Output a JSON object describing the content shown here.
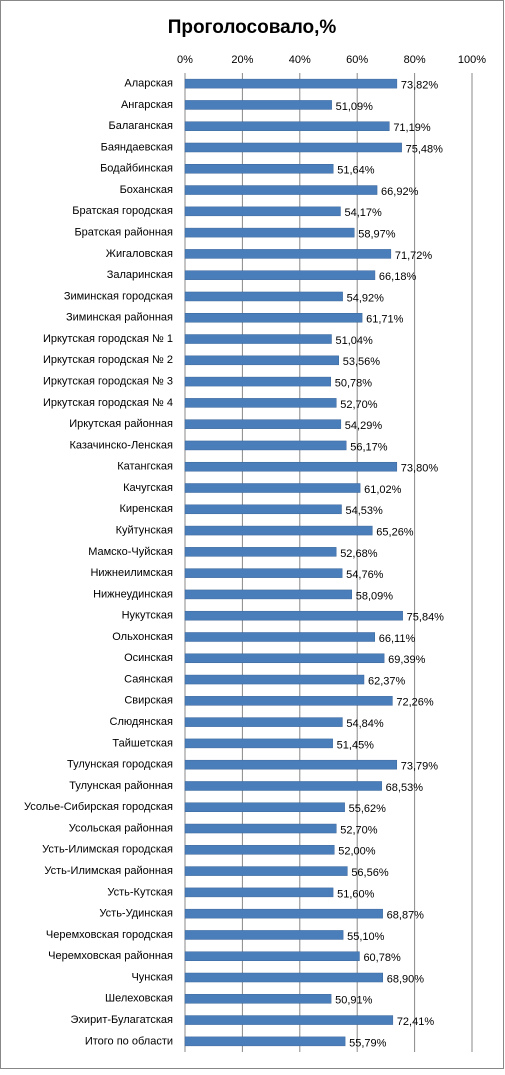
{
  "chart_data": {
    "type": "bar",
    "title": "Проголосовало,%",
    "categories": [
      "Аларская",
      "Ангарская",
      "Балаганская",
      "Баяндаевская",
      "Бодайбинская",
      "Боханская",
      "Братская городская",
      "Братская районная",
      "Жигаловская",
      "Заларинская",
      "Зиминская городская",
      "Зиминская районная",
      "Иркутская городская № 1",
      "Иркутская городская № 2",
      "Иркутская городская № 3",
      "Иркутская городская № 4",
      "Иркутская районная",
      "Казачинско-Ленская",
      "Катангская",
      "Качугская",
      "Киренская",
      "Куйтунская",
      "Мамско-Чуйская",
      "Нижнеилимская",
      "Нижнеудинская",
      "Нукутская",
      "Ольхонская",
      "Осинская",
      "Саянская",
      "Свирская",
      "Слюдянская",
      "Тайшетская",
      "Тулунская городская",
      "Тулунская районная",
      "Усолье-Сибирская городская",
      "Усольская районная",
      "Усть-Илимская городская",
      "Усть-Илимская районная",
      "Усть-Кутская",
      "Усть-Удинская",
      "Черемховская городская",
      "Черемховская районная",
      "Чунская",
      "Шелеховская",
      "Эхирит-Булагатская",
      "Итого по области"
    ],
    "values": [
      73.82,
      51.09,
      71.19,
      75.48,
      51.64,
      66.92,
      54.17,
      58.97,
      71.72,
      66.18,
      54.92,
      61.71,
      51.04,
      53.56,
      50.78,
      52.7,
      54.29,
      56.17,
      73.8,
      61.02,
      54.53,
      65.26,
      52.68,
      54.76,
      58.09,
      75.84,
      66.11,
      69.39,
      62.37,
      72.26,
      54.84,
      51.45,
      73.79,
      68.53,
      55.62,
      52.7,
      52.0,
      56.56,
      51.6,
      68.87,
      55.1,
      60.78,
      68.9,
      50.91,
      72.41,
      55.79
    ],
    "value_labels": [
      "73,82%",
      "51,09%",
      "71,19%",
      "75,48%",
      "51,64%",
      "66,92%",
      "54,17%",
      "58,97%",
      "71,72%",
      "66,18%",
      "54,92%",
      "61,71%",
      "51,04%",
      "53,56%",
      "50,78%",
      "52,70%",
      "54,29%",
      "56,17%",
      "73,80%",
      "61,02%",
      "54,53%",
      "65,26%",
      "52,68%",
      "54,76%",
      "58,09%",
      "75,84%",
      "66,11%",
      "69,39%",
      "62,37%",
      "72,26%",
      "54,84%",
      "51,45%",
      "73,79%",
      "68,53%",
      "55,62%",
      "52,70%",
      "52,00%",
      "56,56%",
      "51,60%",
      "68,87%",
      "55,10%",
      "60,78%",
      "68,90%",
      "50,91%",
      "72,41%",
      "55,79%"
    ],
    "color": "#4a7ebb",
    "xlim": [
      0,
      100
    ],
    "xticks": [
      {
        "value": 0,
        "label": "0%"
      },
      {
        "value": 20,
        "label": "20%"
      },
      {
        "value": 40,
        "label": "40%"
      },
      {
        "value": 60,
        "label": "60%"
      },
      {
        "value": 80,
        "label": "80%"
      },
      {
        "value": 100,
        "label": "100%"
      }
    ],
    "grid": true
  }
}
